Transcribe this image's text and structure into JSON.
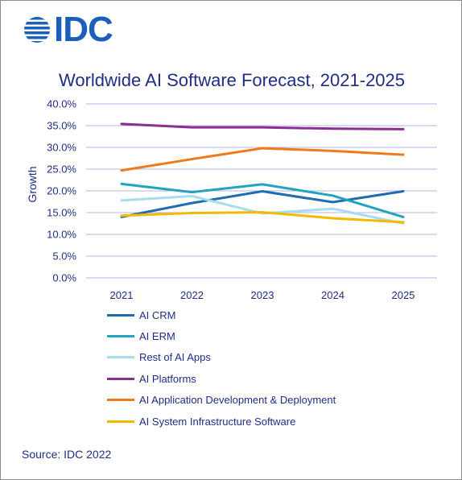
{
  "logo": {
    "text": "IDC",
    "color": "#1a5fbb"
  },
  "chart_data": {
    "type": "line",
    "title": "Worldwide AI Software Forecast, 2021-2025",
    "xlabel": "",
    "ylabel": "Growth",
    "categories": [
      "2021",
      "2022",
      "2023",
      "2024",
      "2025"
    ],
    "ylim": [
      0,
      40
    ],
    "yticks": [
      "0.0%",
      "5.0%",
      "10.0%",
      "15.0%",
      "20.0%",
      "25.0%",
      "30.0%",
      "35.0%",
      "40.0%"
    ],
    "grid": true,
    "legend": "bottom",
    "series": [
      {
        "name": "AI CRM",
        "color": "#1f6cb0",
        "values": [
          14.0,
          17.2,
          19.9,
          17.4,
          19.9
        ]
      },
      {
        "name": "AI ERM",
        "color": "#23a3c0",
        "values": [
          21.6,
          19.7,
          21.5,
          18.9,
          14.0
        ]
      },
      {
        "name": "Rest of AI Apps",
        "color": "#a6dcee",
        "values": [
          17.8,
          18.8,
          14.8,
          15.9,
          12.5
        ]
      },
      {
        "name": "AI Platforms",
        "color": "#8b2f91",
        "values": [
          35.4,
          34.6,
          34.6,
          34.3,
          34.2
        ]
      },
      {
        "name": "AI Application Development & Deployment",
        "color": "#f07a1a",
        "values": [
          24.7,
          27.3,
          29.8,
          29.2,
          28.3
        ]
      },
      {
        "name": "AI System Infrastructure Software",
        "color": "#f5b800",
        "values": [
          14.3,
          14.9,
          15.1,
          13.7,
          12.8
        ]
      }
    ]
  },
  "source": "Source: IDC 2022"
}
